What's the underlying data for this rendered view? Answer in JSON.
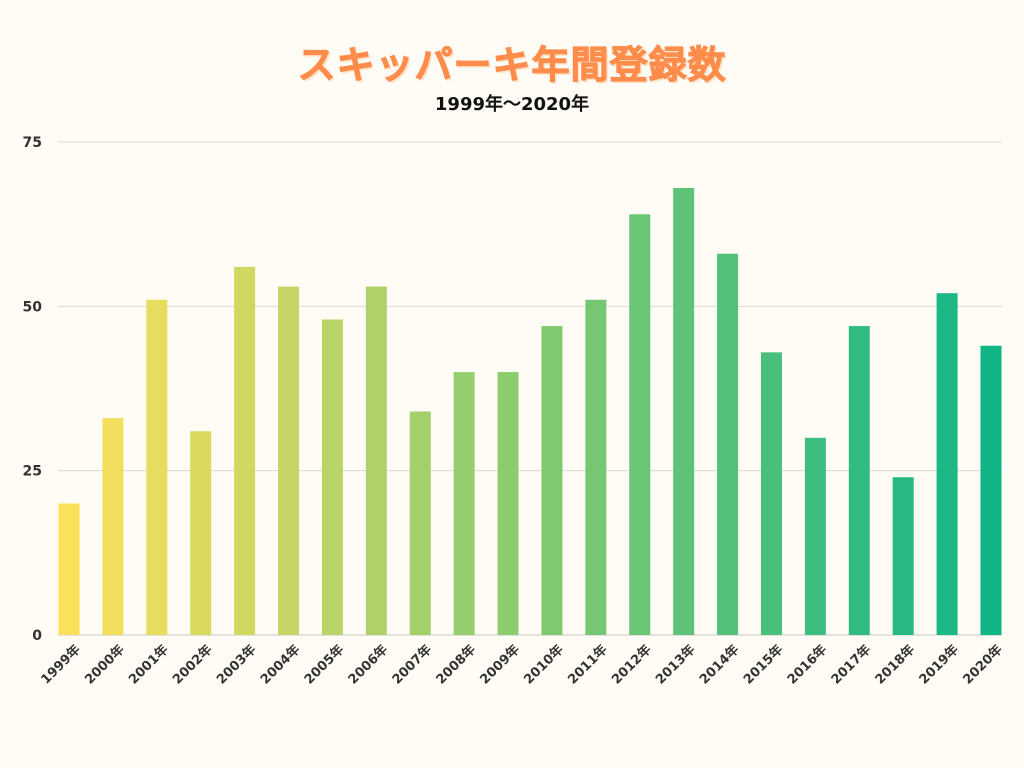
{
  "chart_data": {
    "type": "bar",
    "title": "スキッパーキ年間登録数",
    "subtitle": "1999年〜2020年",
    "xlabel": "",
    "ylabel": "",
    "ylim": [
      0,
      75
    ],
    "yticks": [
      0,
      25,
      50,
      75
    ],
    "grid": true,
    "categories": [
      "1999年",
      "2000年",
      "2001年",
      "2002年",
      "2003年",
      "2004年",
      "2005年",
      "2006年",
      "2007年",
      "2008年",
      "2009年",
      "2010年",
      "2011年",
      "2012年",
      "2013年",
      "2014年",
      "2015年",
      "2016年",
      "2017年",
      "2018年",
      "2019年",
      "2020年"
    ],
    "values": [
      20,
      33,
      51,
      31,
      56,
      53,
      48,
      53,
      34,
      40,
      40,
      47,
      51,
      64,
      68,
      58,
      43,
      30,
      47,
      24,
      52,
      44
    ],
    "colors": {
      "bar_start": "#fde05a",
      "bar_end": "#10b586",
      "title": "#ff8c4a",
      "gridline": "#d9d9d9",
      "background": "#fffbf5"
    }
  }
}
